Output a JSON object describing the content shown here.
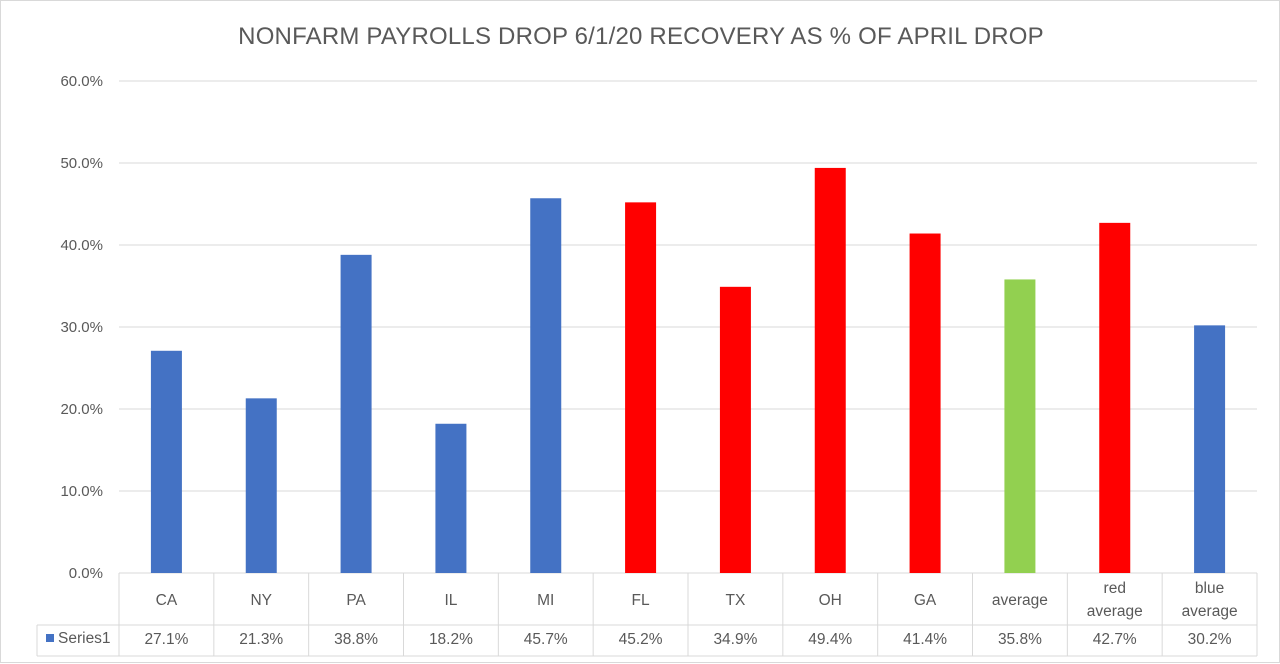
{
  "chart_data": {
    "type": "bar",
    "title": "NONFARM PAYROLLS DROP 6/1/20 RECOVERY AS % OF APRIL DROP",
    "xlabel": "",
    "ylabel": "",
    "ylim": [
      0,
      60
    ],
    "y_ticks": [
      "0.0%",
      "10.0%",
      "20.0%",
      "30.0%",
      "40.0%",
      "50.0%",
      "60.0%"
    ],
    "grid": true,
    "legend": "data table",
    "categories": [
      [
        "CA"
      ],
      [
        "NY"
      ],
      [
        "PA"
      ],
      [
        "IL"
      ],
      [
        "MI"
      ],
      [
        "FL"
      ],
      [
        "TX"
      ],
      [
        "OH"
      ],
      [
        "GA"
      ],
      [
        "average"
      ],
      [
        "red",
        "average"
      ],
      [
        "blue",
        "average"
      ]
    ],
    "series": [
      {
        "name": "Series1",
        "values": [
          27.1,
          21.3,
          38.8,
          18.2,
          45.7,
          45.2,
          34.9,
          49.4,
          41.4,
          35.8,
          42.7,
          30.2
        ],
        "labels": [
          "27.1%",
          "21.3%",
          "38.8%",
          "18.2%",
          "45.7%",
          "45.2%",
          "34.9%",
          "49.4%",
          "41.4%",
          "35.8%",
          "42.7%",
          "30.2%"
        ],
        "point_colors": [
          "#4472c4",
          "#4472c4",
          "#4472c4",
          "#4472c4",
          "#4472c4",
          "#ff0000",
          "#ff0000",
          "#ff0000",
          "#ff0000",
          "#92d050",
          "#ff0000",
          "#4472c4"
        ],
        "legend_color": "#4472c4"
      }
    ]
  }
}
